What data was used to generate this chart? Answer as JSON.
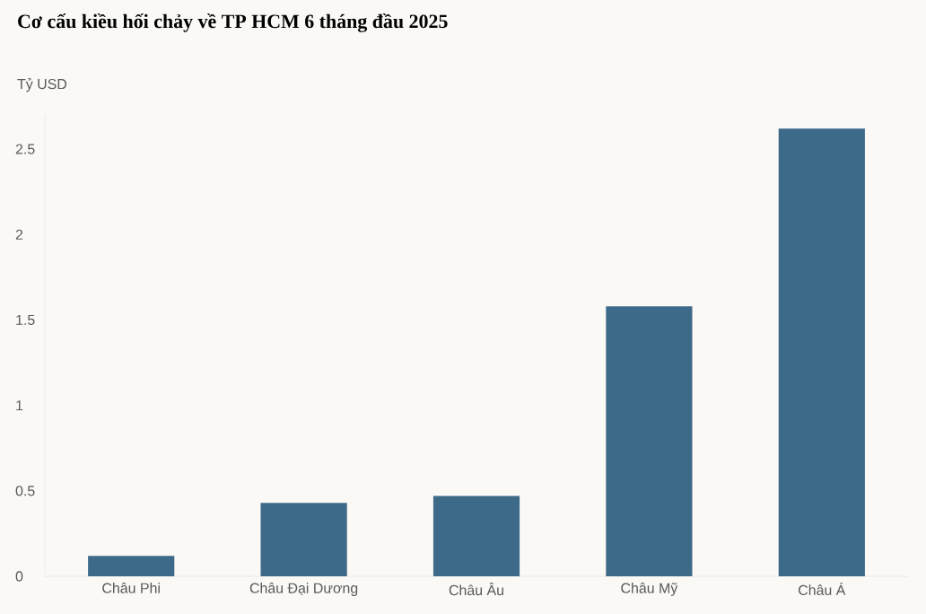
{
  "chart_data": {
    "type": "bar",
    "title": "Cơ cấu kiều hối chảy về TP HCM 6 tháng đầu 2025",
    "ylabel": "Tỷ USD",
    "categories": [
      "Châu Phi",
      "Châu Đại Dương",
      "Châu Âu",
      "Châu Mỹ",
      "Châu Á"
    ],
    "values": [
      0.12,
      0.43,
      0.47,
      1.58,
      2.62
    ],
    "color": "#3e6a8a",
    "ylim": [
      0,
      2.7
    ],
    "yticks": [
      0,
      0.5,
      1,
      1.5,
      2,
      2.5
    ]
  }
}
